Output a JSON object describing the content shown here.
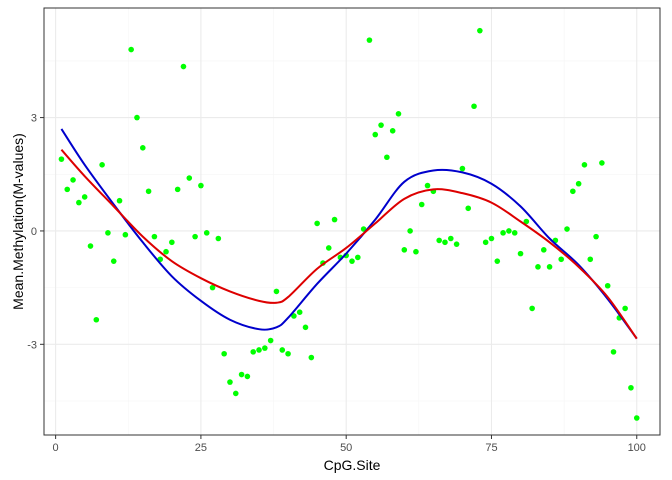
{
  "chart_data": {
    "type": "scatter",
    "xlabel": "CpG.Site",
    "ylabel": "Mean.Methylation(M-values)",
    "xlim": [
      -2,
      104
    ],
    "ylim": [
      -5.4,
      5.9
    ],
    "x_ticks": [
      0,
      25,
      50,
      75,
      100
    ],
    "x_tick_labels": [
      "0",
      "25",
      "50",
      "75",
      "100"
    ],
    "y_ticks": [
      -3,
      0,
      3
    ],
    "y_tick_labels": [
      "-3",
      "0",
      "3"
    ],
    "grid": true,
    "legend": "none",
    "colors": {
      "points": "#00ff00",
      "smooth_blue": "#0000cc",
      "smooth_red": "#dd0000",
      "grid_major": "#ebebeb",
      "grid_minor": "#f5f5f5",
      "panel_border": "#333333"
    },
    "series": [
      {
        "type": "scatter",
        "x": [
          1,
          2,
          3,
          4,
          5,
          6,
          7,
          8,
          9,
          10,
          11,
          12,
          13,
          14,
          15,
          16,
          17,
          18,
          19,
          20,
          21,
          22,
          23,
          24,
          25,
          26,
          27,
          28,
          29,
          30,
          31,
          32,
          33,
          34,
          35,
          36,
          37,
          38,
          39,
          40,
          41,
          42,
          43,
          44,
          45,
          46,
          47,
          48,
          49,
          50,
          51,
          52,
          53,
          54,
          55,
          56,
          57,
          58,
          59,
          60,
          61,
          62,
          63,
          64,
          65,
          66,
          67,
          68,
          69,
          70,
          71,
          72,
          73,
          74,
          75,
          76,
          77,
          78,
          79,
          80,
          81,
          82,
          83,
          84,
          85,
          86,
          87,
          88,
          89,
          90,
          91,
          92,
          93,
          94,
          95,
          96,
          97,
          98,
          99,
          100
        ],
        "y": [
          1.9,
          1.1,
          1.35,
          0.75,
          0.9,
          -0.4,
          -2.35,
          1.75,
          -0.05,
          -0.8,
          0.8,
          -0.1,
          4.8,
          3,
          2.2,
          1.05,
          -0.15,
          -0.75,
          -0.55,
          -0.3,
          1.1,
          4.35,
          1.4,
          -0.15,
          1.2,
          -0.05,
          -1.5,
          -0.2,
          -3.25,
          -4,
          -4.3,
          -3.8,
          -3.85,
          -3.2,
          -3.15,
          -3.1,
          -2.9,
          -1.6,
          -3.15,
          -3.25,
          -2.25,
          -2.15,
          -2.55,
          -3.35,
          0.2,
          -0.85,
          -0.45,
          0.3,
          -0.7,
          -0.65,
          -0.8,
          -0.7,
          0.05,
          5.05,
          2.55,
          2.8,
          1.95,
          2.65,
          3.1,
          -0.5,
          0,
          -0.55,
          0.7,
          1.2,
          1.05,
          -0.25,
          -0.3,
          -0.2,
          -0.35,
          1.65,
          0.6,
          3.3,
          5.3,
          -0.3,
          -0.2,
          -0.8,
          -0.05,
          0,
          -0.05,
          -0.6,
          0.25,
          -2.05,
          -0.95,
          -0.5,
          -0.95,
          -0.25,
          -0.75,
          0.05,
          1.05,
          1.25,
          1.75,
          -0.75,
          -0.15,
          1.8,
          -1.45,
          -3.2,
          -2.3,
          -2.05,
          -4.15,
          -4.95
        ]
      },
      {
        "name": "",
        "type": "line",
        "x": [
          1,
          5,
          10,
          15,
          20,
          25,
          30,
          35,
          38,
          40,
          45,
          50,
          55,
          60,
          65,
          70,
          75,
          80,
          85,
          90,
          95,
          100
        ],
        "y": [
          2.7,
          1.75,
          0.7,
          -0.3,
          -1.2,
          -1.85,
          -2.35,
          -2.6,
          -2.55,
          -2.3,
          -1.4,
          -0.6,
          0.3,
          1.3,
          1.6,
          1.55,
          1.25,
          0.65,
          -0.2,
          -0.9,
          -1.8,
          -2.85
        ]
      },
      {
        "name": "",
        "type": "line",
        "x": [
          1,
          5,
          10,
          15,
          20,
          25,
          30,
          35,
          38,
          40,
          45,
          50,
          55,
          60,
          65,
          70,
          75,
          80,
          85,
          90,
          95,
          100
        ],
        "y": [
          2.15,
          1.45,
          0.65,
          -0.15,
          -0.8,
          -1.25,
          -1.6,
          -1.85,
          -1.9,
          -1.75,
          -1.0,
          -0.45,
          0.2,
          0.85,
          1.1,
          1.0,
          0.75,
          0.25,
          -0.3,
          -0.95,
          -1.75,
          -2.85
        ]
      }
    ]
  }
}
